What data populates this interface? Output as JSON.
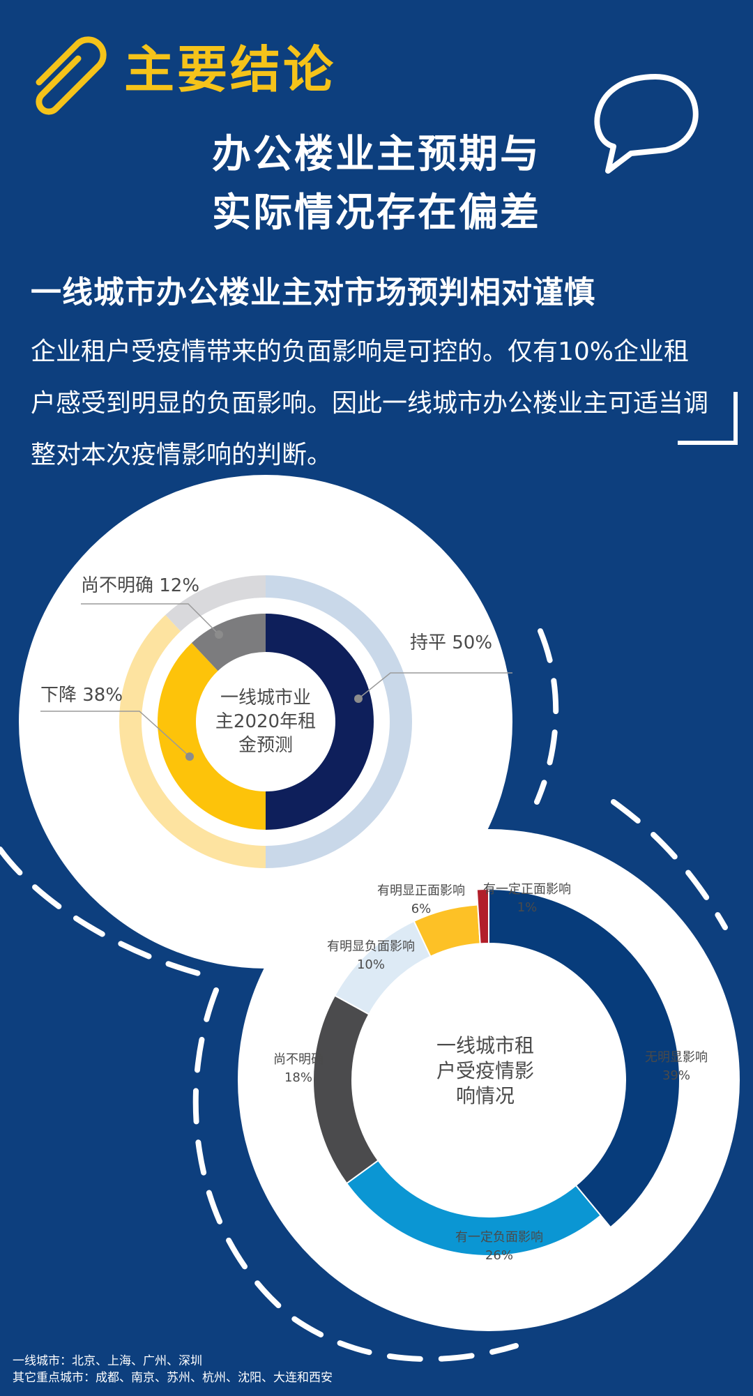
{
  "header": {
    "title": "主要结论",
    "subtitle_line1": "办公楼业主预期与",
    "subtitle_line2": "实际情况存在偏差"
  },
  "section": {
    "title": "一线城市办公楼业主对市场预判相对谨慎",
    "body": "企业租户受疫情带来的负面影响是可控的。仅有10%企业租户感受到明显的负面影响。因此一线城市办公楼业主可适当调整对本次疫情影响的判断。"
  },
  "footnote": {
    "line1": "一线城市：北京、上海、广州、深圳",
    "line2": "其它重点城市：成都、南京、苏州、杭州、沈阳、大连和西安"
  },
  "chart_data": [
    {
      "type": "pie",
      "title_lines": [
        "一线城市业",
        "主2020年租",
        "金预测"
      ],
      "slices": [
        {
          "label": "持平 50%",
          "value": 50,
          "color": "#0e1f5b",
          "ring_color": "#c9d8e9"
        },
        {
          "label": "下降 38%",
          "value": 38,
          "color": "#fdc30a",
          "ring_color": "#fde3a0"
        },
        {
          "label": "尚不明确 12%",
          "value": 12,
          "color": "#7c7c7e",
          "ring_color": "#d9d9dc"
        }
      ]
    },
    {
      "type": "pie",
      "title_lines": [
        "一线城市租",
        "户受疫情影",
        "响情况"
      ],
      "slices": [
        {
          "label": "无明显影响",
          "pct": "39%",
          "value": 39,
          "color": "#073c7b"
        },
        {
          "label": "有一定负面影响",
          "pct": "26%",
          "value": 26,
          "color": "#0b96d3"
        },
        {
          "label": "尚不明确",
          "pct": "18%",
          "value": 18,
          "color": "#4b4b4d"
        },
        {
          "label": "有明显负面影响",
          "pct": "10%",
          "value": 10,
          "color": "#ddeaf5"
        },
        {
          "label": "有明显正面影响",
          "pct": "6%",
          "value": 6,
          "color": "#fdc126"
        },
        {
          "label": "有一定正面影响",
          "pct": "1%",
          "value": 1,
          "color": "#b21f2a"
        }
      ]
    }
  ]
}
